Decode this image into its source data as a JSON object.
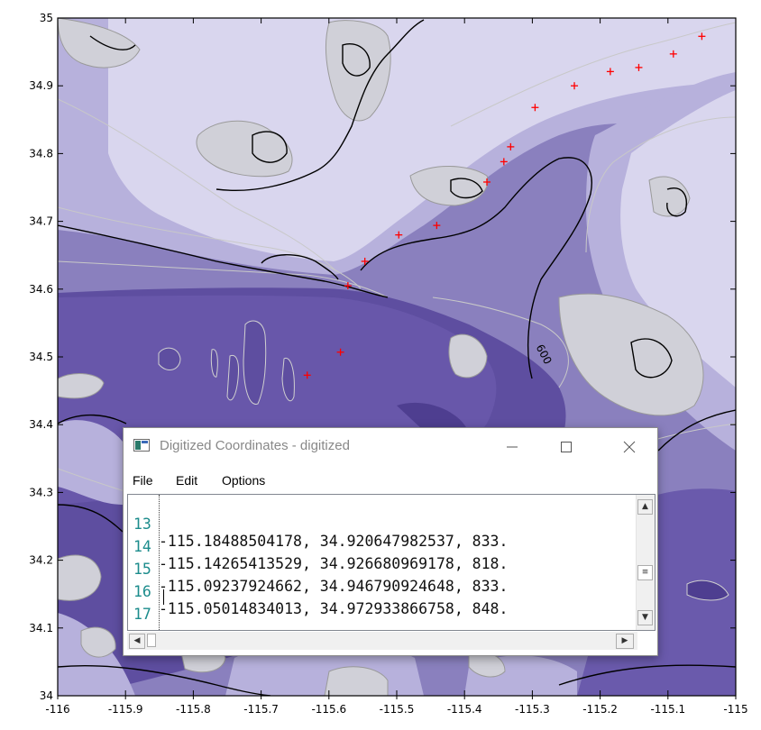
{
  "map": {
    "x_ticks": [
      "-116",
      "-115.9",
      "-115.8",
      "-115.7",
      "-115.6",
      "-115.5",
      "-115.4",
      "-115.3",
      "-115.2",
      "-115.1",
      "-115"
    ],
    "y_ticks": [
      "35",
      "34.9",
      "34.8",
      "34.7",
      "34.6",
      "34.5",
      "34.4",
      "34.3",
      "34.2",
      "34.1",
      "34"
    ],
    "contour_label": "600",
    "colors": {
      "fill_dark": "#5e4ea0",
      "fill_mid": "#8a80be",
      "fill_light": "#b7b1dc",
      "fill_pale": "#d9d6ee",
      "contour_major": "#000000",
      "contour_minor": "#c8c8c8",
      "marker": "#ff0000"
    },
    "markers": [
      {
        "lon": -115.632,
        "lat": 34.473
      },
      {
        "lon": -115.583,
        "lat": 34.507
      },
      {
        "lon": -115.572,
        "lat": 34.605
      },
      {
        "lon": -115.547,
        "lat": 34.641
      },
      {
        "lon": -115.497,
        "lat": 34.68
      },
      {
        "lon": -115.441,
        "lat": 34.694
      },
      {
        "lon": -115.367,
        "lat": 34.758
      },
      {
        "lon": -115.342,
        "lat": 34.788
      },
      {
        "lon": -115.332,
        "lat": 34.81
      },
      {
        "lon": -115.296,
        "lat": 34.868
      },
      {
        "lon": -115.238,
        "lat": 34.9
      },
      {
        "lon": -115.185,
        "lat": 34.921
      },
      {
        "lon": -115.143,
        "lat": 34.927
      },
      {
        "lon": -115.092,
        "lat": 34.947
      },
      {
        "lon": -115.05,
        "lat": 34.973
      }
    ]
  },
  "dialog": {
    "title": "Digitized Coordinates - digitized",
    "minimize_icon": "minimize-icon",
    "maximize_icon": "maximize-icon",
    "close_icon": "close-icon",
    "menu": [
      "File",
      "Edit",
      "Options"
    ],
    "lines": [
      {
        "num": "13",
        "text": "-115.18488504178, 34.920647982537, 833."
      },
      {
        "num": "14",
        "text": "-115.14265413529, 34.926680969178, 818."
      },
      {
        "num": "15",
        "text": "-115.09237924662, 34.946790924648, 833."
      },
      {
        "num": "16",
        "text": "-115.05014834013, 34.972933866758, 848."
      },
      {
        "num": "17",
        "text": ""
      }
    ]
  }
}
